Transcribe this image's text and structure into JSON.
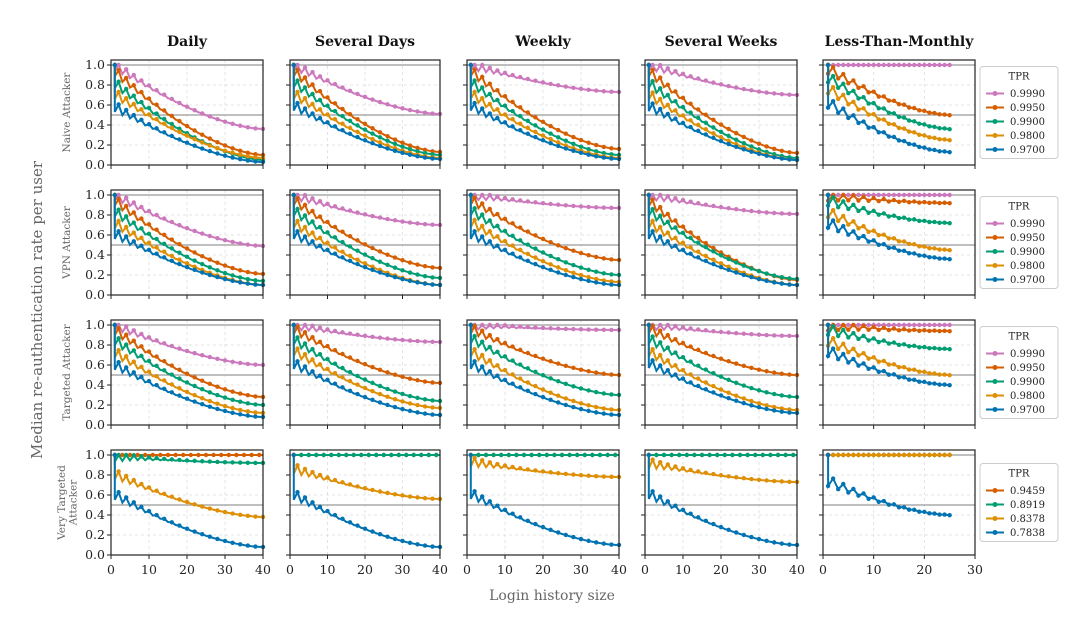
{
  "figure": {
    "ylabel": "Median re-authentication rate per user",
    "xlabel": "Login history size"
  },
  "chart_data": {
    "type": "line",
    "grid": true,
    "columns": [
      "Daily",
      "Several Days",
      "Weekly",
      "Several Weeks",
      "Less-Than-Monthly"
    ],
    "rows": [
      "Naive Attacker",
      "VPN Attacker",
      "Targeted Attacker",
      "Very Targeted Attacker"
    ],
    "xlim": [
      [
        0,
        40
      ],
      [
        0,
        40
      ],
      [
        0,
        40
      ],
      [
        0,
        40
      ],
      [
        0,
        30
      ]
    ],
    "xticks": [
      [
        0,
        10,
        20,
        30,
        40
      ],
      [
        0,
        10,
        20,
        30,
        40
      ],
      [
        0,
        10,
        20,
        30,
        40
      ],
      [
        0,
        10,
        20,
        30,
        40
      ],
      [
        0,
        10,
        20,
        30
      ]
    ],
    "ylim": [
      0,
      1.05
    ],
    "yticks": [
      "0.0",
      "0.2",
      "0.4",
      "0.6",
      "0.8",
      "1.0"
    ],
    "reference_lines_y": [
      0.5,
      1.0
    ],
    "legend_title": "TPR",
    "legend_placement": "right of each row",
    "legends": [
      [
        "0.9990",
        "0.9950",
        "0.9900",
        "0.9800",
        "0.9700"
      ],
      [
        "0.9990",
        "0.9950",
        "0.9900",
        "0.9800",
        "0.9700"
      ],
      [
        "0.9990",
        "0.9950",
        "0.9900",
        "0.9800",
        "0.9700"
      ],
      [
        "0.9459",
        "0.8919",
        "0.8378",
        "0.7838"
      ]
    ],
    "colors_by_row": [
      [
        "#cc78bc",
        "#d55e00",
        "#029e73",
        "#de8f05",
        "#0173b2"
      ],
      [
        "#cc78bc",
        "#d55e00",
        "#029e73",
        "#de8f05",
        "#0173b2"
      ],
      [
        "#cc78bc",
        "#d55e00",
        "#029e73",
        "#de8f05",
        "#0173b2"
      ],
      [
        "#d55e00",
        "#029e73",
        "#de8f05",
        "#0173b2"
      ]
    ],
    "series_end_values_approx": [
      [
        [
          0.36,
          0.1,
          0.05,
          0.07,
          0.03
        ],
        [
          0.51,
          0.13,
          0.1,
          0.07,
          0.06
        ],
        [
          0.73,
          0.16,
          0.1,
          0.07,
          0.06
        ],
        [
          0.7,
          0.12,
          0.07,
          0.05,
          0.05
        ],
        [
          1.0,
          0.5,
          0.36,
          0.25,
          0.13
        ]
      ],
      [
        [
          0.49,
          0.21,
          0.14,
          0.1,
          0.1
        ],
        [
          0.7,
          0.27,
          0.17,
          0.1,
          0.1
        ],
        [
          0.87,
          0.35,
          0.2,
          0.13,
          0.1
        ],
        [
          0.81,
          0.15,
          0.16,
          0.1,
          0.1
        ],
        [
          1.0,
          0.92,
          0.72,
          0.45,
          0.36
        ]
      ],
      [
        [
          0.6,
          0.28,
          0.2,
          0.12,
          0.08
        ],
        [
          0.83,
          0.42,
          0.24,
          0.17,
          0.1
        ],
        [
          0.95,
          0.5,
          0.3,
          0.15,
          0.1
        ],
        [
          0.89,
          0.5,
          0.28,
          0.15,
          0.12
        ],
        [
          1.0,
          0.94,
          0.76,
          0.5,
          0.4
        ]
      ],
      [
        [
          1.0,
          0.92,
          0.38,
          0.08
        ],
        [
          1.0,
          1.0,
          0.56,
          0.08
        ],
        [
          1.0,
          1.0,
          0.78,
          0.1
        ],
        [
          1.0,
          1.0,
          0.73,
          0.1
        ],
        [
          1.0,
          1.0,
          1.0,
          0.4
        ]
      ]
    ]
  }
}
